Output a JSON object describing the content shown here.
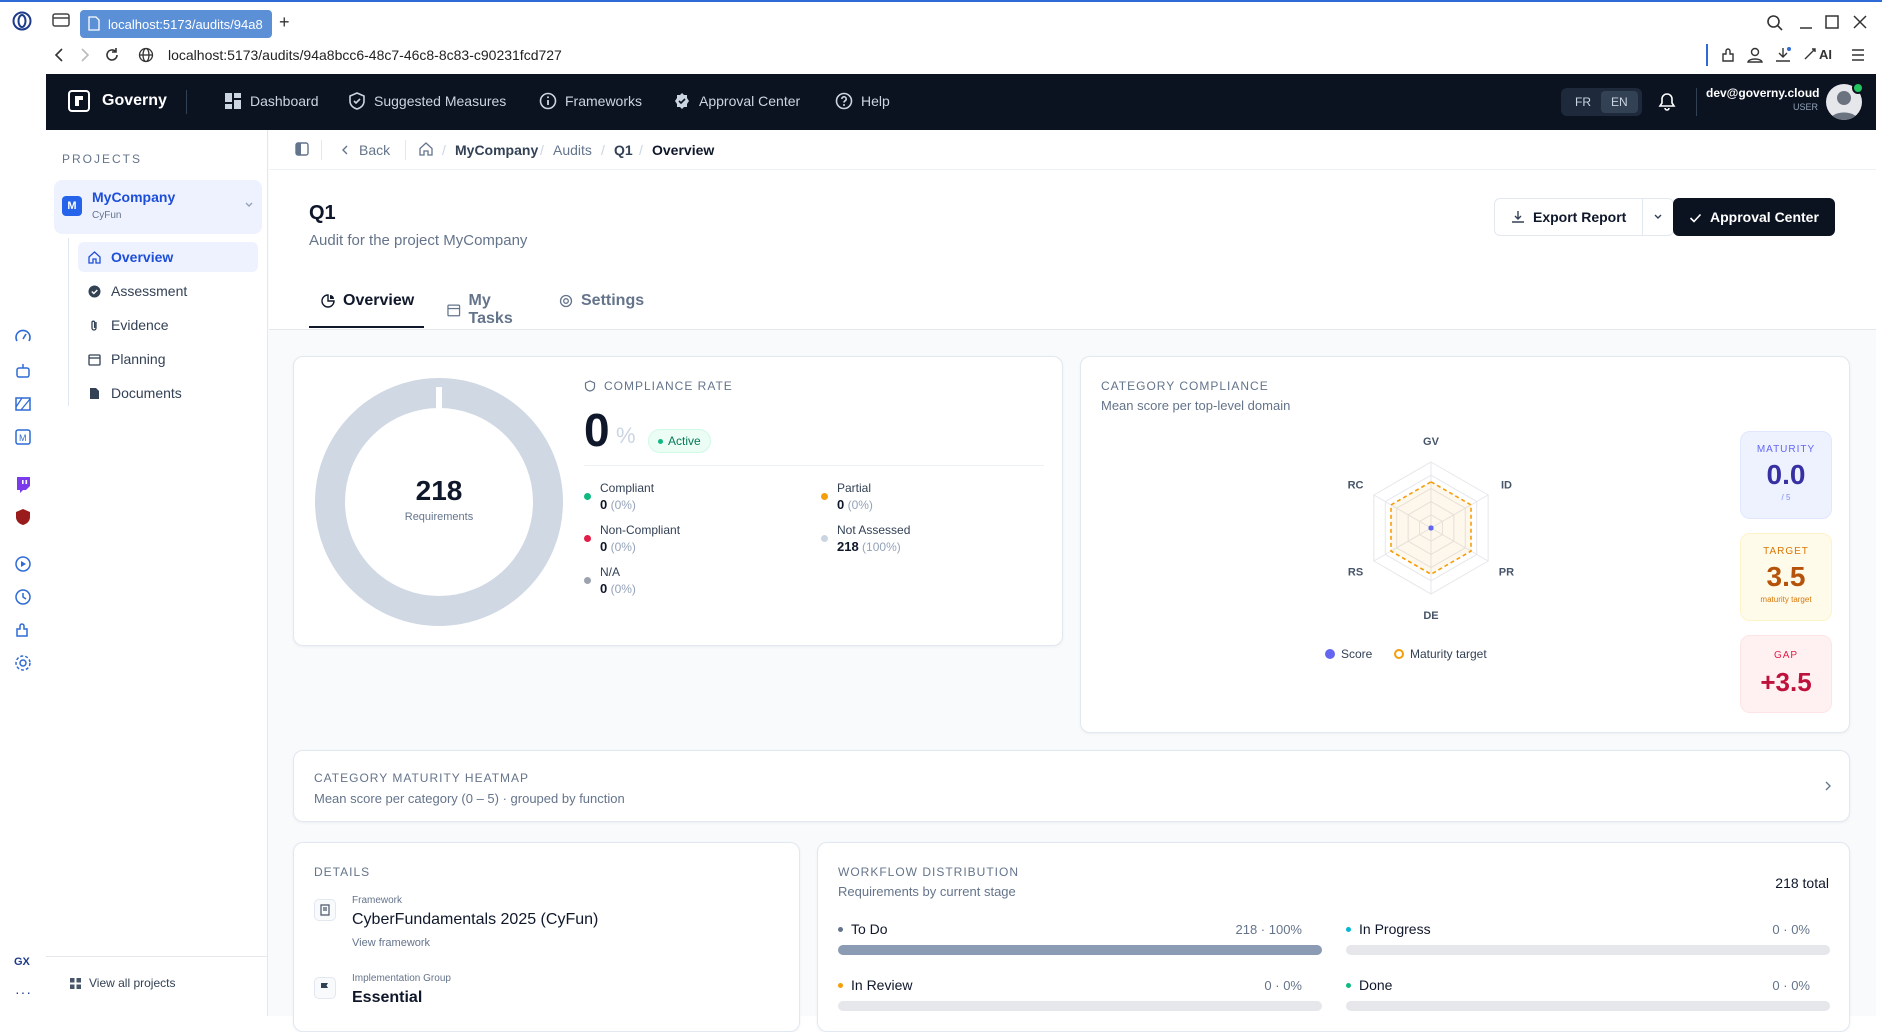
{
  "browser": {
    "tab_title": "localhost:5173/audits/94a8",
    "new_tab": "+",
    "url": "localhost:5173/audits/94a8bcc6-48c7-46c8-8c83-c90231fcd727",
    "ai_label": "AI"
  },
  "nav": {
    "brand": "Governy",
    "items": [
      {
        "label": "Dashboard",
        "icon": "grid-icon"
      },
      {
        "label": "Suggested Measures",
        "icon": "shield-icon"
      },
      {
        "label": "Frameworks",
        "icon": "info-icon"
      },
      {
        "label": "Approval Center",
        "icon": "badge-check-icon"
      },
      {
        "label": "Help",
        "icon": "help-icon"
      }
    ],
    "lang_fr": "FR",
    "lang_en": "EN",
    "user_email": "dev@governy.cloud",
    "user_role": "USER"
  },
  "sidebar": {
    "heading": "PROJECTS",
    "project": {
      "initial": "M",
      "name": "MyCompany",
      "sub": "CyFun"
    },
    "items": [
      {
        "label": "Overview",
        "icon": "home-icon",
        "active": true
      },
      {
        "label": "Assessment",
        "icon": "check-circle-icon"
      },
      {
        "label": "Evidence",
        "icon": "paperclip-icon"
      },
      {
        "label": "Planning",
        "icon": "calendar-icon"
      },
      {
        "label": "Documents",
        "icon": "document-icon"
      }
    ],
    "view_all": "View all projects"
  },
  "breadcrumb": {
    "back": "Back",
    "crumbs": [
      "MyCompany",
      "Audits",
      "Q1",
      "Overview"
    ]
  },
  "page": {
    "title": "Q1",
    "subtitle": "Audit for the project MyCompany",
    "export_label": "Export Report",
    "approval_label": "Approval Center",
    "tabs": [
      {
        "label": "Overview",
        "active": true
      },
      {
        "label": "My Tasks"
      },
      {
        "label": "Settings"
      }
    ]
  },
  "compliance": {
    "total": "218",
    "total_label": "Requirements",
    "heading": "COMPLIANCE RATE",
    "rate": "0",
    "rate_unit": "%",
    "status": "Active",
    "rows": [
      {
        "label": "Compliant",
        "value": "0",
        "pct": "(0%)",
        "color": "#10b981"
      },
      {
        "label": "Partial",
        "value": "0",
        "pct": "(0%)",
        "color": "#f59e0b"
      },
      {
        "label": "Non-Compliant",
        "value": "0",
        "pct": "(0%)",
        "color": "#e11d48"
      },
      {
        "label": "Not Assessed",
        "value": "218",
        "pct": "(100%)",
        "color": "#cbd5e1"
      },
      {
        "label": "N/A",
        "value": "0",
        "pct": "(0%)",
        "color": "#9ca3af"
      }
    ]
  },
  "category": {
    "heading": "CATEGORY COMPLIANCE",
    "subtitle": "Mean score per top-level domain",
    "axes": [
      "GV",
      "ID",
      "PR",
      "DE",
      "RS",
      "RC"
    ],
    "legend_score": "Score",
    "legend_target": "Maturity target",
    "maturity": {
      "label": "MATURITY",
      "value": "0.0",
      "sub": "/ 5"
    },
    "target": {
      "label": "TARGET",
      "value": "3.5",
      "sub": "maturity target"
    },
    "gap": {
      "label": "GAP",
      "value": "+3.5"
    }
  },
  "chart_data": {
    "type": "radar",
    "categories": [
      "GV",
      "ID",
      "PR",
      "DE",
      "RS",
      "RC"
    ],
    "series": [
      {
        "name": "Score",
        "values": [
          0,
          0,
          0,
          0,
          0,
          0
        ]
      },
      {
        "name": "Maturity target",
        "values": [
          3.5,
          3.5,
          3.5,
          3.5,
          3.5,
          3.5
        ]
      }
    ],
    "ylim": [
      0,
      5
    ]
  },
  "heatmap": {
    "heading": "CATEGORY MATURITY HEATMAP",
    "subtitle": "Mean score per category (0 – 5) · grouped by function"
  },
  "details": {
    "heading": "DETAILS",
    "framework_label": "Framework",
    "framework_value": "CyberFundamentals 2025 (CyFun)",
    "view_framework": "View framework",
    "group_label": "Implementation Group",
    "group_value": "Essential"
  },
  "workflow": {
    "heading": "WORKFLOW DISTRIBUTION",
    "subtitle": "Requirements by current stage",
    "total": "218 total",
    "stages": [
      {
        "label": "To Do",
        "value": "218 · 100%",
        "fraction": 1.0,
        "color": "#64748b"
      },
      {
        "label": "In Progress",
        "value": "0 · 0%",
        "fraction": 0,
        "color": "#06b6d4"
      },
      {
        "label": "In Review",
        "value": "0 · 0%",
        "fraction": 0,
        "color": "#f59e0b"
      },
      {
        "label": "Done",
        "value": "0 · 0%",
        "fraction": 0,
        "color": "#10b981"
      }
    ]
  }
}
